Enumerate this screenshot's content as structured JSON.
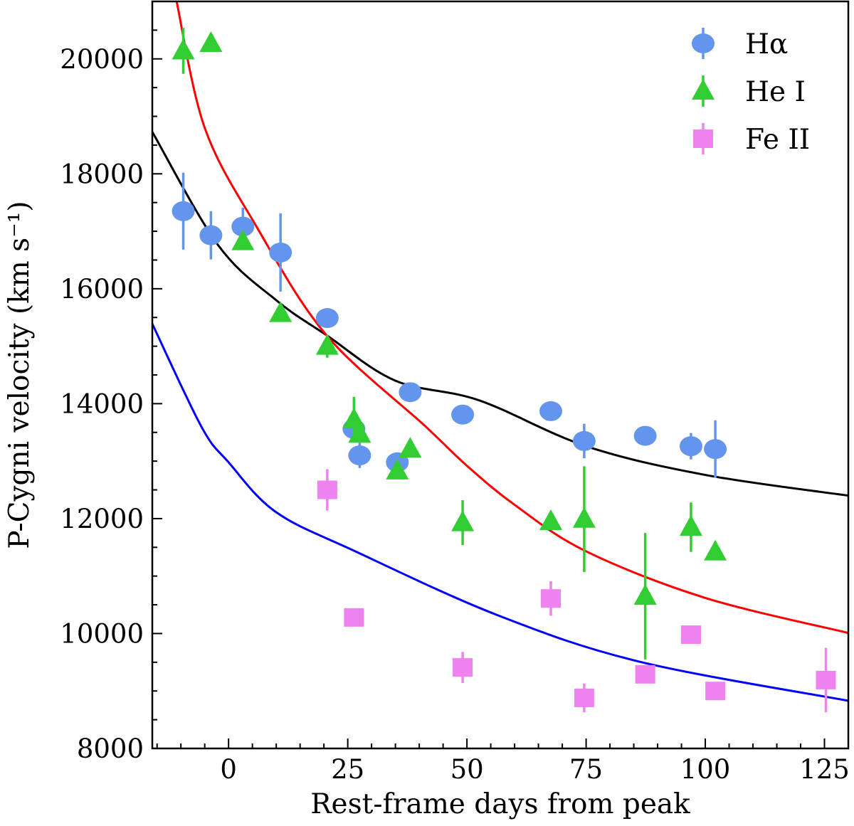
{
  "chart_data": {
    "type": "scatter",
    "title": "",
    "xlabel": "Rest-frame days from peak",
    "ylabel": "P-Cygni velocity (km s⁻¹)",
    "xlim": [
      -16,
      130
    ],
    "ylim": [
      8000,
      21000
    ],
    "xticks": [
      0,
      25,
      50,
      75,
      100,
      125
    ],
    "yticks": [
      8000,
      10000,
      12000,
      14000,
      16000,
      18000,
      20000
    ],
    "grid": false,
    "legend_position": "top-right",
    "series": [
      {
        "name": "Hα",
        "marker": "circle",
        "color": "#6495ED",
        "points": [
          {
            "x": -9.5,
            "y": 17350,
            "err": 670
          },
          {
            "x": -3.7,
            "y": 16930,
            "err": 420
          },
          {
            "x": 3.0,
            "y": 17080,
            "err": 330
          },
          {
            "x": 10.9,
            "y": 16630,
            "err": 680
          },
          {
            "x": 20.7,
            "y": 15490,
            "err": 0
          },
          {
            "x": 26.3,
            "y": 13560,
            "err": 0
          },
          {
            "x": 27.5,
            "y": 13100,
            "err": 220
          },
          {
            "x": 35.4,
            "y": 12980,
            "err": 0
          },
          {
            "x": 38.1,
            "y": 14200,
            "err": 0
          },
          {
            "x": 49.1,
            "y": 13810,
            "err": 0
          },
          {
            "x": 67.6,
            "y": 13870,
            "err": 0
          },
          {
            "x": 74.6,
            "y": 13350,
            "err": 300
          },
          {
            "x": 87.4,
            "y": 13440,
            "err": 0
          },
          {
            "x": 97.0,
            "y": 13260,
            "err": 230
          },
          {
            "x": 102.1,
            "y": 13210,
            "err": 500
          }
        ]
      },
      {
        "name": "He I",
        "marker": "triangle",
        "color": "#32CD32",
        "points": [
          {
            "x": -9.5,
            "y": 20140,
            "err": 400
          },
          {
            "x": -3.7,
            "y": 20270,
            "err": 0
          },
          {
            "x": 3.0,
            "y": 16820,
            "err": 0
          },
          {
            "x": 10.9,
            "y": 15570,
            "err": 0
          },
          {
            "x": 20.7,
            "y": 15000,
            "err": 200
          },
          {
            "x": 26.3,
            "y": 13720,
            "err": 400
          },
          {
            "x": 27.5,
            "y": 13470,
            "err": 0
          },
          {
            "x": 35.4,
            "y": 12830,
            "err": 0
          },
          {
            "x": 38.1,
            "y": 13210,
            "err": 0
          },
          {
            "x": 49.1,
            "y": 11930,
            "err": 390
          },
          {
            "x": 67.6,
            "y": 11950,
            "err": 0
          },
          {
            "x": 74.6,
            "y": 11990,
            "err": 920
          },
          {
            "x": 87.4,
            "y": 10650,
            "err": 1100
          },
          {
            "x": 97.0,
            "y": 11850,
            "err": 430
          },
          {
            "x": 102.1,
            "y": 11420,
            "err": 0
          }
        ]
      },
      {
        "name": "Fe II",
        "marker": "square",
        "color": "#EE82EE",
        "points": [
          {
            "x": 20.7,
            "y": 12500,
            "err": 360
          },
          {
            "x": 26.3,
            "y": 10280,
            "err": 150
          },
          {
            "x": 49.1,
            "y": 9410,
            "err": 270
          },
          {
            "x": 67.6,
            "y": 10610,
            "err": 300
          },
          {
            "x": 74.6,
            "y": 8880,
            "err": 250
          },
          {
            "x": 87.4,
            "y": 9290,
            "err": 150
          },
          {
            "x": 97.0,
            "y": 9980,
            "err": 0
          },
          {
            "x": 102.1,
            "y": 9000,
            "err": 0
          },
          {
            "x": 125.3,
            "y": 9190,
            "err": 560
          }
        ]
      }
    ],
    "fit_curves": [
      {
        "color": "#000000",
        "points": [
          [
            -16,
            18730
          ],
          [
            -2.2,
            16760
          ],
          [
            10,
            15800
          ],
          [
            20.5,
            15195
          ],
          [
            35,
            14400
          ],
          [
            52.5,
            14060
          ],
          [
            75,
            13260
          ],
          [
            100,
            12760
          ],
          [
            130,
            12400
          ]
        ]
      },
      {
        "color": "#FF0000",
        "points": [
          [
            -10.9,
            21000
          ],
          [
            -5,
            18800
          ],
          [
            5.8,
            17090
          ],
          [
            20.5,
            15195
          ],
          [
            41.1,
            13620
          ],
          [
            50,
            12920
          ],
          [
            60,
            12240
          ],
          [
            75,
            11430
          ],
          [
            100,
            10620
          ],
          [
            130,
            10010
          ]
        ]
      },
      {
        "color": "#0000FF",
        "points": [
          [
            -16,
            15390
          ],
          [
            -5.7,
            13600
          ],
          [
            0,
            12980
          ],
          [
            10,
            12110
          ],
          [
            26.6,
            11430
          ],
          [
            56.4,
            10320
          ],
          [
            86.2,
            9510
          ],
          [
            130,
            8830
          ]
        ]
      }
    ]
  }
}
